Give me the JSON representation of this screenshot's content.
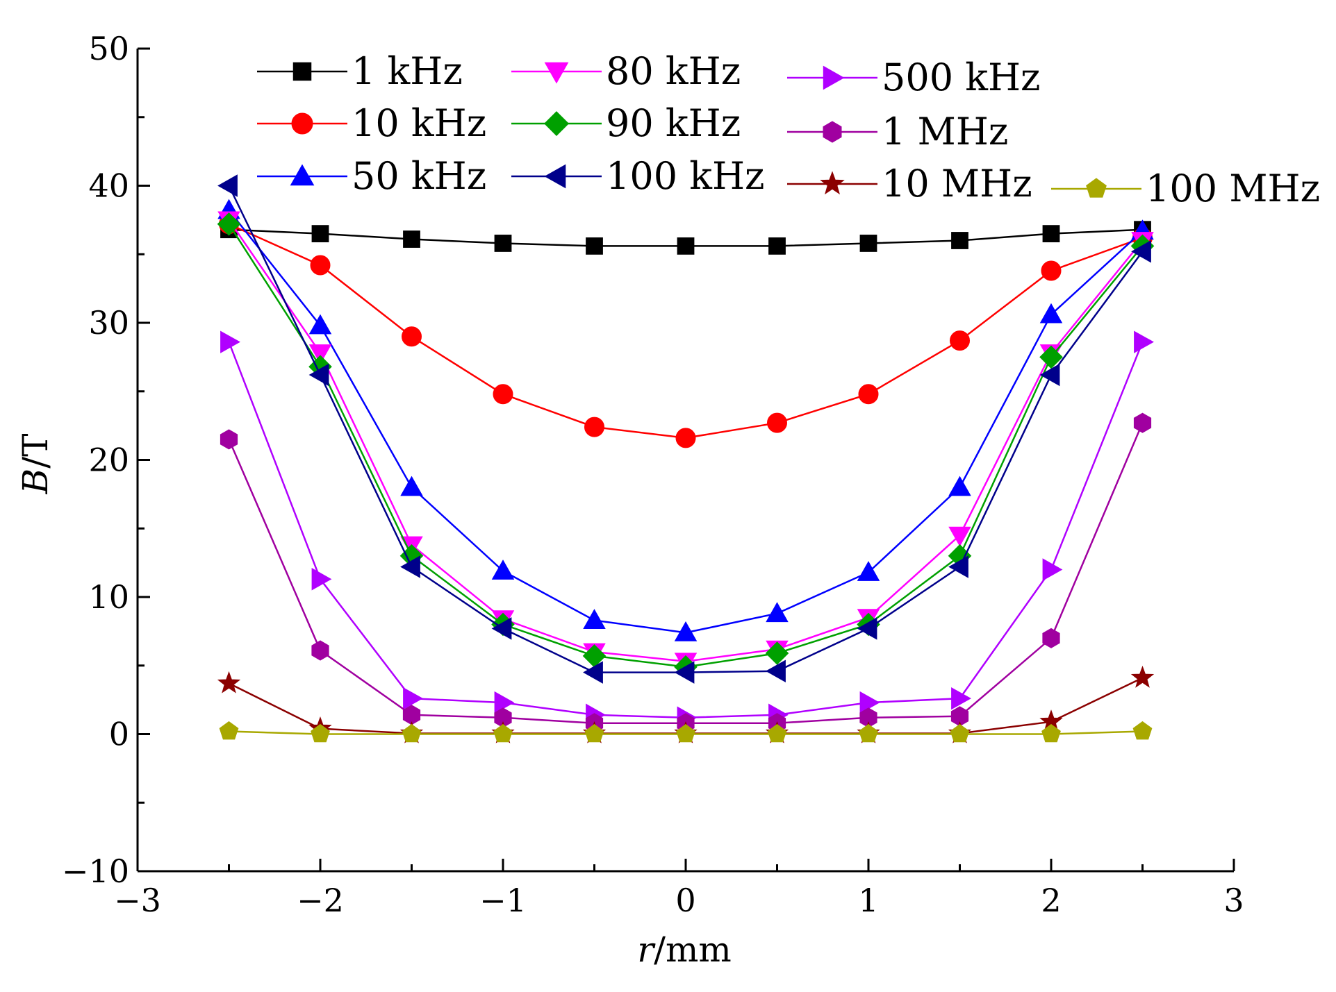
{
  "chart_data": {
    "type": "line",
    "xlabel": {
      "var": "r",
      "unit": "/mm"
    },
    "ylabel": {
      "var": "B",
      "unit": "/T"
    },
    "xlim": [
      -3,
      3
    ],
    "ylim": [
      -10,
      50
    ],
    "x_ticks": [
      -3,
      -2,
      -1,
      0,
      1,
      2,
      3
    ],
    "y_ticks": [
      -10,
      0,
      10,
      20,
      30,
      40,
      50
    ],
    "x_tick_labels": [
      "−3",
      "−2",
      "−1",
      "0",
      "1",
      "2",
      "3"
    ],
    "y_tick_labels": [
      "−10",
      "0",
      "10",
      "20",
      "30",
      "40",
      "50"
    ],
    "grid": false,
    "legend_position": "top",
    "x": [
      -2.5,
      -2,
      -1.5,
      -1,
      -0.5,
      0,
      0.5,
      1,
      1.5,
      2,
      2.5
    ],
    "series": [
      {
        "name": "1 kHz",
        "color": "#000000",
        "marker": "square",
        "values": [
          36.8,
          36.5,
          36.1,
          35.8,
          35.6,
          35.6,
          35.6,
          35.8,
          36.0,
          36.5,
          36.8
        ]
      },
      {
        "name": "10 kHz",
        "color": "#ff0000",
        "marker": "circle",
        "values": [
          37.2,
          34.2,
          29.0,
          24.8,
          22.4,
          21.6,
          22.7,
          24.8,
          28.7,
          33.8,
          36.2
        ]
      },
      {
        "name": "50 kHz",
        "color": "#0000ff",
        "marker": "triangle-up",
        "values": [
          38.2,
          29.8,
          18.0,
          11.9,
          8.3,
          7.4,
          8.8,
          11.8,
          18.0,
          30.6,
          36.7
        ]
      },
      {
        "name": "80 kHz",
        "color": "#ff00ff",
        "marker": "triangle-down",
        "values": [
          37.5,
          27.8,
          13.8,
          8.4,
          6.0,
          5.3,
          6.2,
          8.5,
          14.5,
          27.8,
          36.0
        ]
      },
      {
        "name": "90 kHz",
        "color": "#00a000",
        "marker": "diamond",
        "values": [
          37.2,
          26.8,
          13.0,
          8.0,
          5.7,
          4.9,
          5.9,
          8.0,
          13.0,
          27.5,
          35.6
        ]
      },
      {
        "name": "100 kHz",
        "color": "#00008b",
        "marker": "triangle-left",
        "values": [
          40.0,
          26.2,
          12.2,
          7.7,
          4.5,
          4.5,
          4.6,
          7.7,
          12.2,
          26.2,
          35.2
        ]
      },
      {
        "name": "500 kHz",
        "color": "#b000ff",
        "marker": "triangle-right",
        "values": [
          28.6,
          11.3,
          2.6,
          2.3,
          1.4,
          1.2,
          1.4,
          2.3,
          2.6,
          12.0,
          28.6
        ]
      },
      {
        "name": "1 MHz",
        "color": "#a000a0",
        "marker": "hexagon",
        "values": [
          21.5,
          6.1,
          1.4,
          1.2,
          0.8,
          0.8,
          0.8,
          1.2,
          1.3,
          7.0,
          22.7
        ]
      },
      {
        "name": "10 MHz",
        "color": "#8b0000",
        "marker": "star",
        "values": [
          3.7,
          0.4,
          0.05,
          0.05,
          0.05,
          0.05,
          0.05,
          0.05,
          0.05,
          0.9,
          4.1
        ]
      },
      {
        "name": "100 MHz",
        "color": "#a8a800",
        "marker": "pentagon",
        "values": [
          0.2,
          0.0,
          0.0,
          0.0,
          0.0,
          0.0,
          0.0,
          0.0,
          0.0,
          0.0,
          0.2
        ]
      }
    ]
  }
}
